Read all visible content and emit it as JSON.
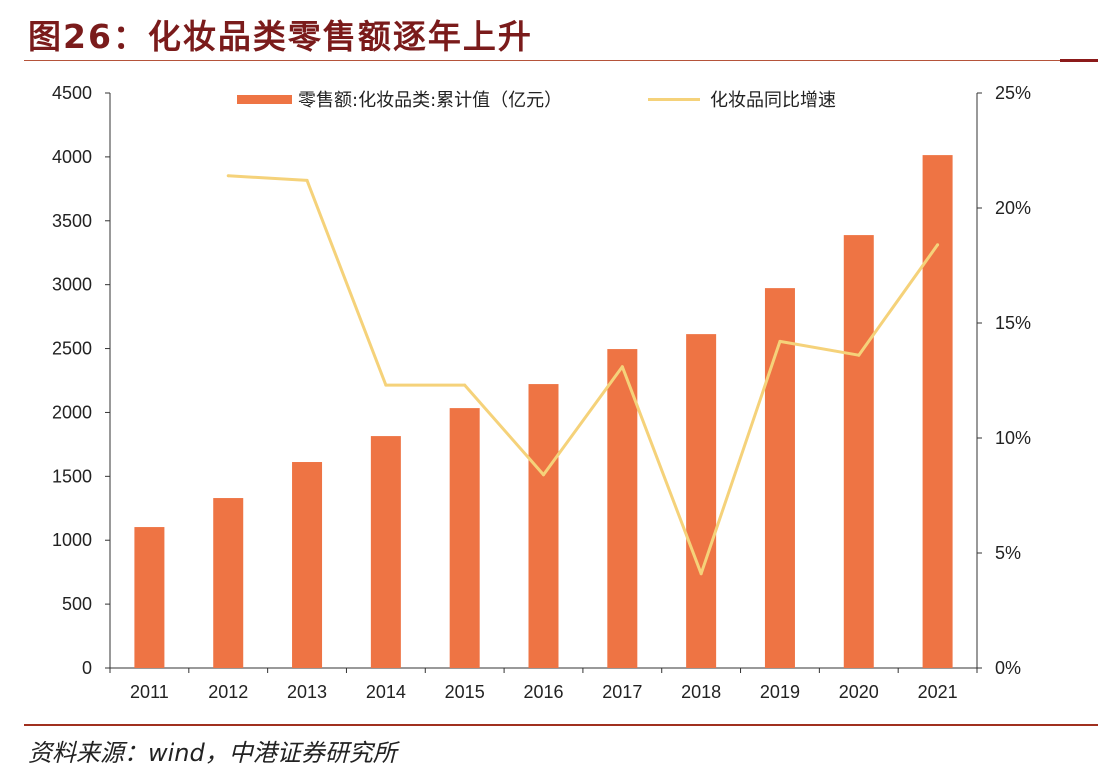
{
  "title": "图26：化妆品类零售额逐年上升",
  "source": "资料来源：wind，中港证券研究所",
  "chart_data": {
    "type": "bar",
    "categories": [
      "2011",
      "2012",
      "2013",
      "2014",
      "2015",
      "2016",
      "2017",
      "2018",
      "2019",
      "2020",
      "2021"
    ],
    "series": [
      {
        "name": "零售额:化妆品类:累计值（亿元）",
        "type": "bar",
        "axis": "left",
        "color": "#ee7444",
        "values": [
          1103,
          1330,
          1612,
          1815,
          2034,
          2222,
          2496,
          2613,
          2973,
          3388,
          4014
        ]
      },
      {
        "name": "化妆品同比增速",
        "type": "line",
        "axis": "right",
        "color": "#f5d27a",
        "values": [
          null,
          21.4,
          21.2,
          12.3,
          12.3,
          8.4,
          13.1,
          4.1,
          14.2,
          13.6,
          18.4
        ]
      }
    ],
    "y_left": {
      "min": 0,
      "max": 4500,
      "ticks": [
        "0",
        "500",
        "1000",
        "1500",
        "2000",
        "2500",
        "3000",
        "3500",
        "4000",
        "4500"
      ]
    },
    "y_right": {
      "min": 0,
      "max": 25,
      "ticks": [
        "0%",
        "5%",
        "10%",
        "15%",
        "20%",
        "25%"
      ]
    },
    "legend": "top-center",
    "grid": false
  }
}
